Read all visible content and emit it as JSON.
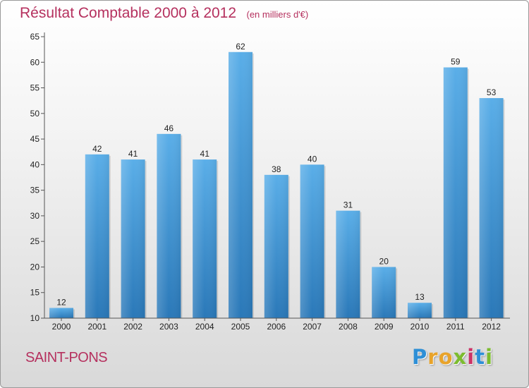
{
  "chart_data": {
    "type": "bar",
    "title": "Résultat Comptable 2000 à 2012",
    "subtitle": "(en milliers d'€)",
    "categories": [
      "2000",
      "2001",
      "2002",
      "2003",
      "2004",
      "2005",
      "2006",
      "2007",
      "2008",
      "2009",
      "2010",
      "2011",
      "2012"
    ],
    "values": [
      12,
      42,
      41,
      46,
      41,
      62,
      38,
      40,
      31,
      20,
      13,
      59,
      53
    ],
    "yticks": [
      10,
      15,
      20,
      25,
      30,
      35,
      40,
      45,
      50,
      55,
      60,
      65
    ],
    "ylim": [
      10,
      65
    ],
    "xlabel": "",
    "ylabel": "",
    "grid": false,
    "bar_color_top": "#5aaee8",
    "bar_color_bottom": "#2a78b8"
  },
  "location": {
    "name": "SAINT-PONS"
  },
  "brand": {
    "letters": [
      "P",
      "r",
      "o",
      "x",
      "i",
      "t",
      "i"
    ],
    "colors": [
      "#2e8fd6",
      "#e8a32a",
      "#e8a32a",
      "#7cbc2e",
      "#cc3366",
      "#2e8fd6",
      "#7cbc2e"
    ]
  },
  "colors": {
    "title": "#b5305e",
    "axis": "#555555"
  }
}
